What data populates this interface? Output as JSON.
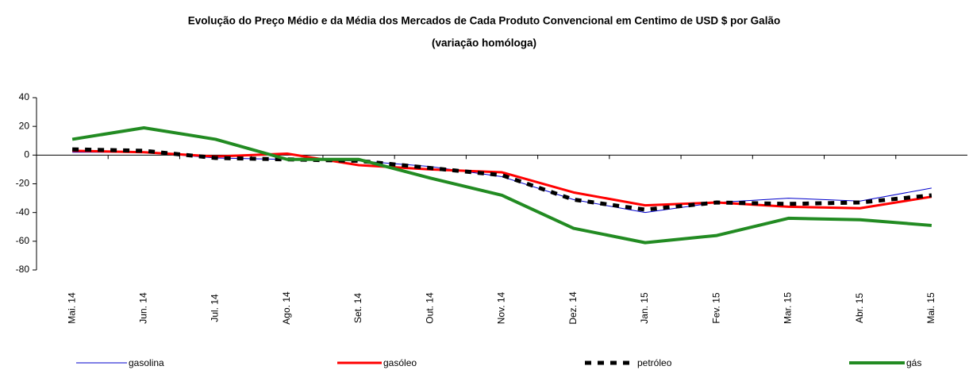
{
  "chart_data": {
    "type": "line",
    "title": "Evolução do Preço Médio e da Média dos Mercados de Cada Produto Convencional em Centimo de USD $ por Galão",
    "subtitle": "(variação homóloga)",
    "categories": [
      "Mai. 14",
      "Jun. 14",
      "Jul. 14",
      "Ago. 14",
      "Set. 14",
      "Out. 14",
      "Nov. 14",
      "Dez. 14",
      "Jan. 15",
      "Fev. 15",
      "Mar. 15",
      "Abr. 15",
      "Mai. 15"
    ],
    "series": [
      {
        "name": "gasolina",
        "color": "#0000cc",
        "width": 1,
        "dash": false,
        "values": [
          2,
          2,
          -2,
          -3,
          -4,
          -8,
          -15,
          -31,
          -40,
          -33,
          -30,
          -32,
          -23
        ]
      },
      {
        "name": "gasóleo",
        "color": "#ff0000",
        "width": 3,
        "dash": false,
        "values": [
          3,
          2,
          -1,
          1,
          -7,
          -10,
          -12,
          -26,
          -35,
          -33,
          -36,
          -37,
          -29
        ]
      },
      {
        "name": "petróleo",
        "color": "#000000",
        "width": 5,
        "dash": true,
        "values": [
          4,
          3,
          -2,
          -3,
          -4,
          -9,
          -14,
          -31,
          -38,
          -33,
          -34,
          -33,
          -28
        ]
      },
      {
        "name": "gás",
        "color": "#228b22",
        "width": 4,
        "dash": false,
        "values": [
          11,
          19,
          11,
          -3,
          -3,
          -16,
          -28,
          -51,
          -61,
          -56,
          -44,
          -45,
          -49
        ]
      }
    ],
    "ylim": [
      -80,
      40
    ],
    "yticks": [
      -80,
      -60,
      -40,
      -20,
      0,
      20,
      40
    ],
    "grid": false
  }
}
